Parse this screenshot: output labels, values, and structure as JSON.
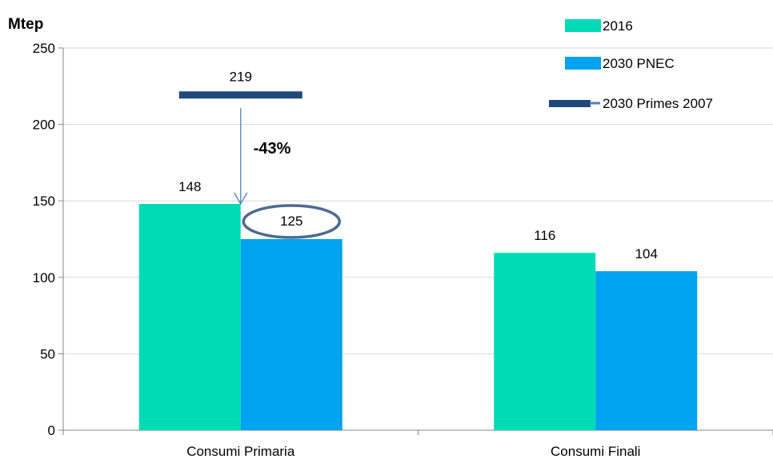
{
  "chart_data": {
    "type": "bar",
    "unit_label": "Mtep",
    "categories": [
      "Consumi Primaria",
      "Consumi Finali"
    ],
    "series": [
      {
        "name": "2016",
        "values": [
          148,
          116
        ],
        "color": "#00dbb5"
      },
      {
        "name": "2030 PNEC",
        "values": [
          125,
          104
        ],
        "color": "#00a3ef"
      }
    ],
    "reference_line": {
      "name": "2030 Primes 2007",
      "value": 219,
      "category": "Consumi Primaria",
      "color": "#1f497d"
    },
    "annotation": {
      "text": "-43%",
      "circled_value": 125,
      "circle_color": "#4e6a8f",
      "arrow_color": "#4f81bd"
    },
    "y_ticks": [
      0,
      50,
      100,
      150,
      200,
      250
    ],
    "ylim": [
      0,
      250
    ],
    "grid": true,
    "grid_color": "#d9d9d9",
    "legend_position": "top-right"
  }
}
